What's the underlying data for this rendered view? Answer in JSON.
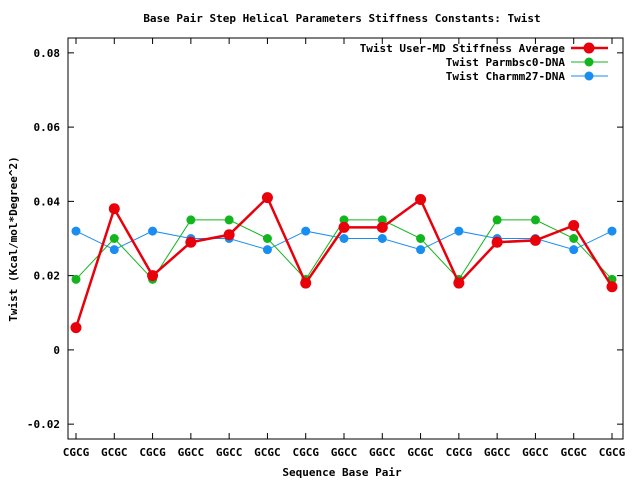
{
  "chart_data": {
    "type": "line",
    "title": "Base Pair Step Helical Parameters Stiffness Constants: Twist",
    "xlabel": "Sequence Base Pair",
    "ylabel": "Twist (Kcal/mol*Degree^2)",
    "categories": [
      "CGCG",
      "GCGC",
      "CGCG",
      "GGCC",
      "GGCC",
      "GCGC",
      "CGCG",
      "GGCC",
      "GGCC",
      "GCGC",
      "CGCG",
      "GGCC",
      "GGCC",
      "GCGC",
      "CGCG"
    ],
    "ylim": [
      -0.024,
      0.084
    ],
    "yticks": [
      -0.02,
      0,
      0.02,
      0.04,
      0.06,
      0.08
    ],
    "ytick_labels": [
      "-0.02",
      "0",
      "0.02",
      "0.04",
      "0.06",
      "0.08"
    ],
    "grid": false,
    "legend_position": "top-right",
    "series": [
      {
        "name": "Twist User-MD Stiffness Average",
        "color": "#e8000b",
        "values": [
          0.006,
          0.038,
          0.02,
          0.029,
          0.031,
          0.041,
          0.018,
          0.033,
          0.033,
          0.0405,
          0.018,
          0.029,
          0.0295,
          0.0335,
          0.017
        ]
      },
      {
        "name": "Twist Parmbsc0-DNA",
        "color": "#13b51e",
        "values": [
          0.019,
          0.03,
          0.019,
          0.035,
          0.035,
          0.03,
          0.019,
          0.035,
          0.035,
          0.03,
          0.019,
          0.035,
          0.035,
          0.03,
          0.019
        ]
      },
      {
        "name": "Twist Charmm27-DNA",
        "color": "#1a8ef0",
        "values": [
          0.032,
          0.027,
          0.032,
          0.03,
          0.03,
          0.027,
          0.032,
          0.03,
          0.03,
          0.027,
          0.032,
          0.03,
          0.03,
          0.027,
          0.032
        ]
      }
    ]
  }
}
